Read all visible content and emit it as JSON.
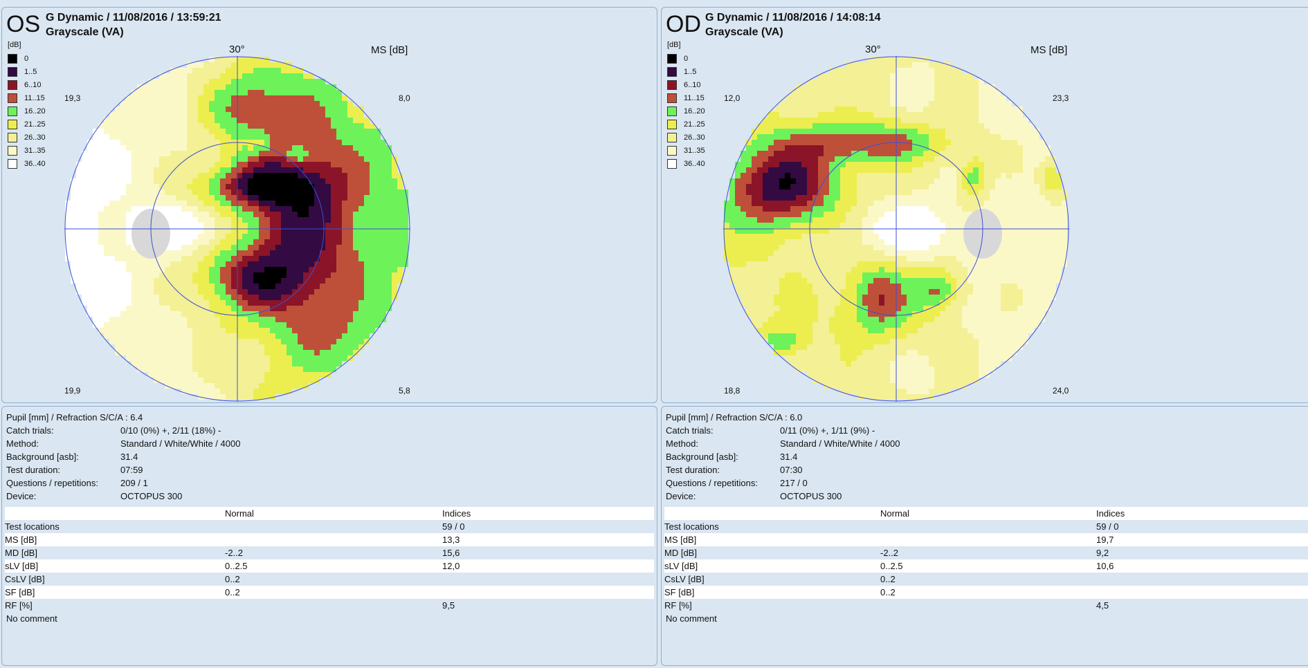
{
  "legend_title": "[dB]",
  "legend": [
    {
      "label": "0",
      "color": "#000000"
    },
    {
      "label": "1..5",
      "color": "#330a41"
    },
    {
      "label": "6..10",
      "color": "#8c1428"
    },
    {
      "label": "11..15",
      "color": "#be5039"
    },
    {
      "label": "16..20",
      "color": "#6df25a"
    },
    {
      "label": "21..25",
      "color": "#ecee50"
    },
    {
      "label": "26..30",
      "color": "#f4f096"
    },
    {
      "label": "31..35",
      "color": "#fbf8c8"
    },
    {
      "label": "36..40",
      "color": "#ffffff"
    }
  ],
  "panels": [
    {
      "eye": "OS",
      "title": "G Dynamic / 11/08/2016 / 13:59:21",
      "subtitle": "Grayscale (VA)",
      "deg": "30°",
      "ms": "MS [dB]",
      "corners": {
        "tl": "19,3",
        "tr": "8,0",
        "bl": "19,9",
        "br": "5,8"
      },
      "info": [
        {
          "key": "Pupil [mm] / Refraction S/C/A :",
          "value": "6.4",
          "inline": true
        },
        {
          "key": "Catch trials:",
          "value": "0/10 (0%) +, 2/11 (18%) -"
        },
        {
          "key": "Method:",
          "value": "Standard / White/White / 4000"
        },
        {
          "key": "Background [asb]:",
          "value": "31.4"
        },
        {
          "key": "Test duration:",
          "value": "07:59"
        },
        {
          "key": "Questions / repetitions:",
          "value": "209 / 1"
        },
        {
          "key": "Device:",
          "value": "OCTOPUS 300"
        }
      ],
      "table_head": {
        "c1": "",
        "c2": "Normal",
        "c3": "Indices"
      },
      "table": [
        {
          "c1": "Test locations",
          "c2": "",
          "c3": "59 / 0"
        },
        {
          "c1": "MS [dB]",
          "c2": "",
          "c3": "13,3"
        },
        {
          "c1": "MD [dB]",
          "c2": "-2..2",
          "c3": "15,6"
        },
        {
          "c1": "sLV [dB]",
          "c2": "0..2.5",
          "c3": "12,0"
        },
        {
          "c1": "CsLV [dB]",
          "c2": "0..2",
          "c3": ""
        },
        {
          "c1": "SF [dB]",
          "c2": "0..2",
          "c3": ""
        },
        {
          "c1": "RF [%]",
          "c2": "",
          "c3": "9,5"
        }
      ],
      "comment": "No comment"
    },
    {
      "eye": "OD",
      "title": "G Dynamic / 11/08/2016 / 14:08:14",
      "subtitle": "Grayscale (VA)",
      "deg": "30°",
      "ms": "MS [dB]",
      "corners": {
        "tl": "12,0",
        "tr": "23,3",
        "bl": "18,8",
        "br": "24,0"
      },
      "info": [
        {
          "key": "Pupil [mm] / Refraction S/C/A :",
          "value": "6.0",
          "inline": true
        },
        {
          "key": "Catch trials:",
          "value": "0/11 (0%) +, 1/11 (9%) -"
        },
        {
          "key": "Method:",
          "value": "Standard / White/White / 4000"
        },
        {
          "key": "Background [asb]:",
          "value": "31.4"
        },
        {
          "key": "Test duration:",
          "value": "07:30"
        },
        {
          "key": "Questions / repetitions:",
          "value": "217 / 0"
        },
        {
          "key": "Device:",
          "value": "OCTOPUS 300"
        }
      ],
      "table_head": {
        "c1": "",
        "c2": "Normal",
        "c3": "Indices"
      },
      "table": [
        {
          "c1": "Test locations",
          "c2": "",
          "c3": "59 / 0"
        },
        {
          "c1": "MS [dB]",
          "c2": "",
          "c3": "19,7"
        },
        {
          "c1": "MD [dB]",
          "c2": "-2..2",
          "c3": "9,2"
        },
        {
          "c1": "sLV [dB]",
          "c2": "0..2.5",
          "c3": "10,6"
        },
        {
          "c1": "CsLV [dB]",
          "c2": "0..2",
          "c3": ""
        },
        {
          "c1": "SF [dB]",
          "c2": "0..2",
          "c3": ""
        },
        {
          "c1": "RF [%]",
          "c2": "",
          "c3": "4,5"
        }
      ],
      "comment": "No comment"
    }
  ]
}
